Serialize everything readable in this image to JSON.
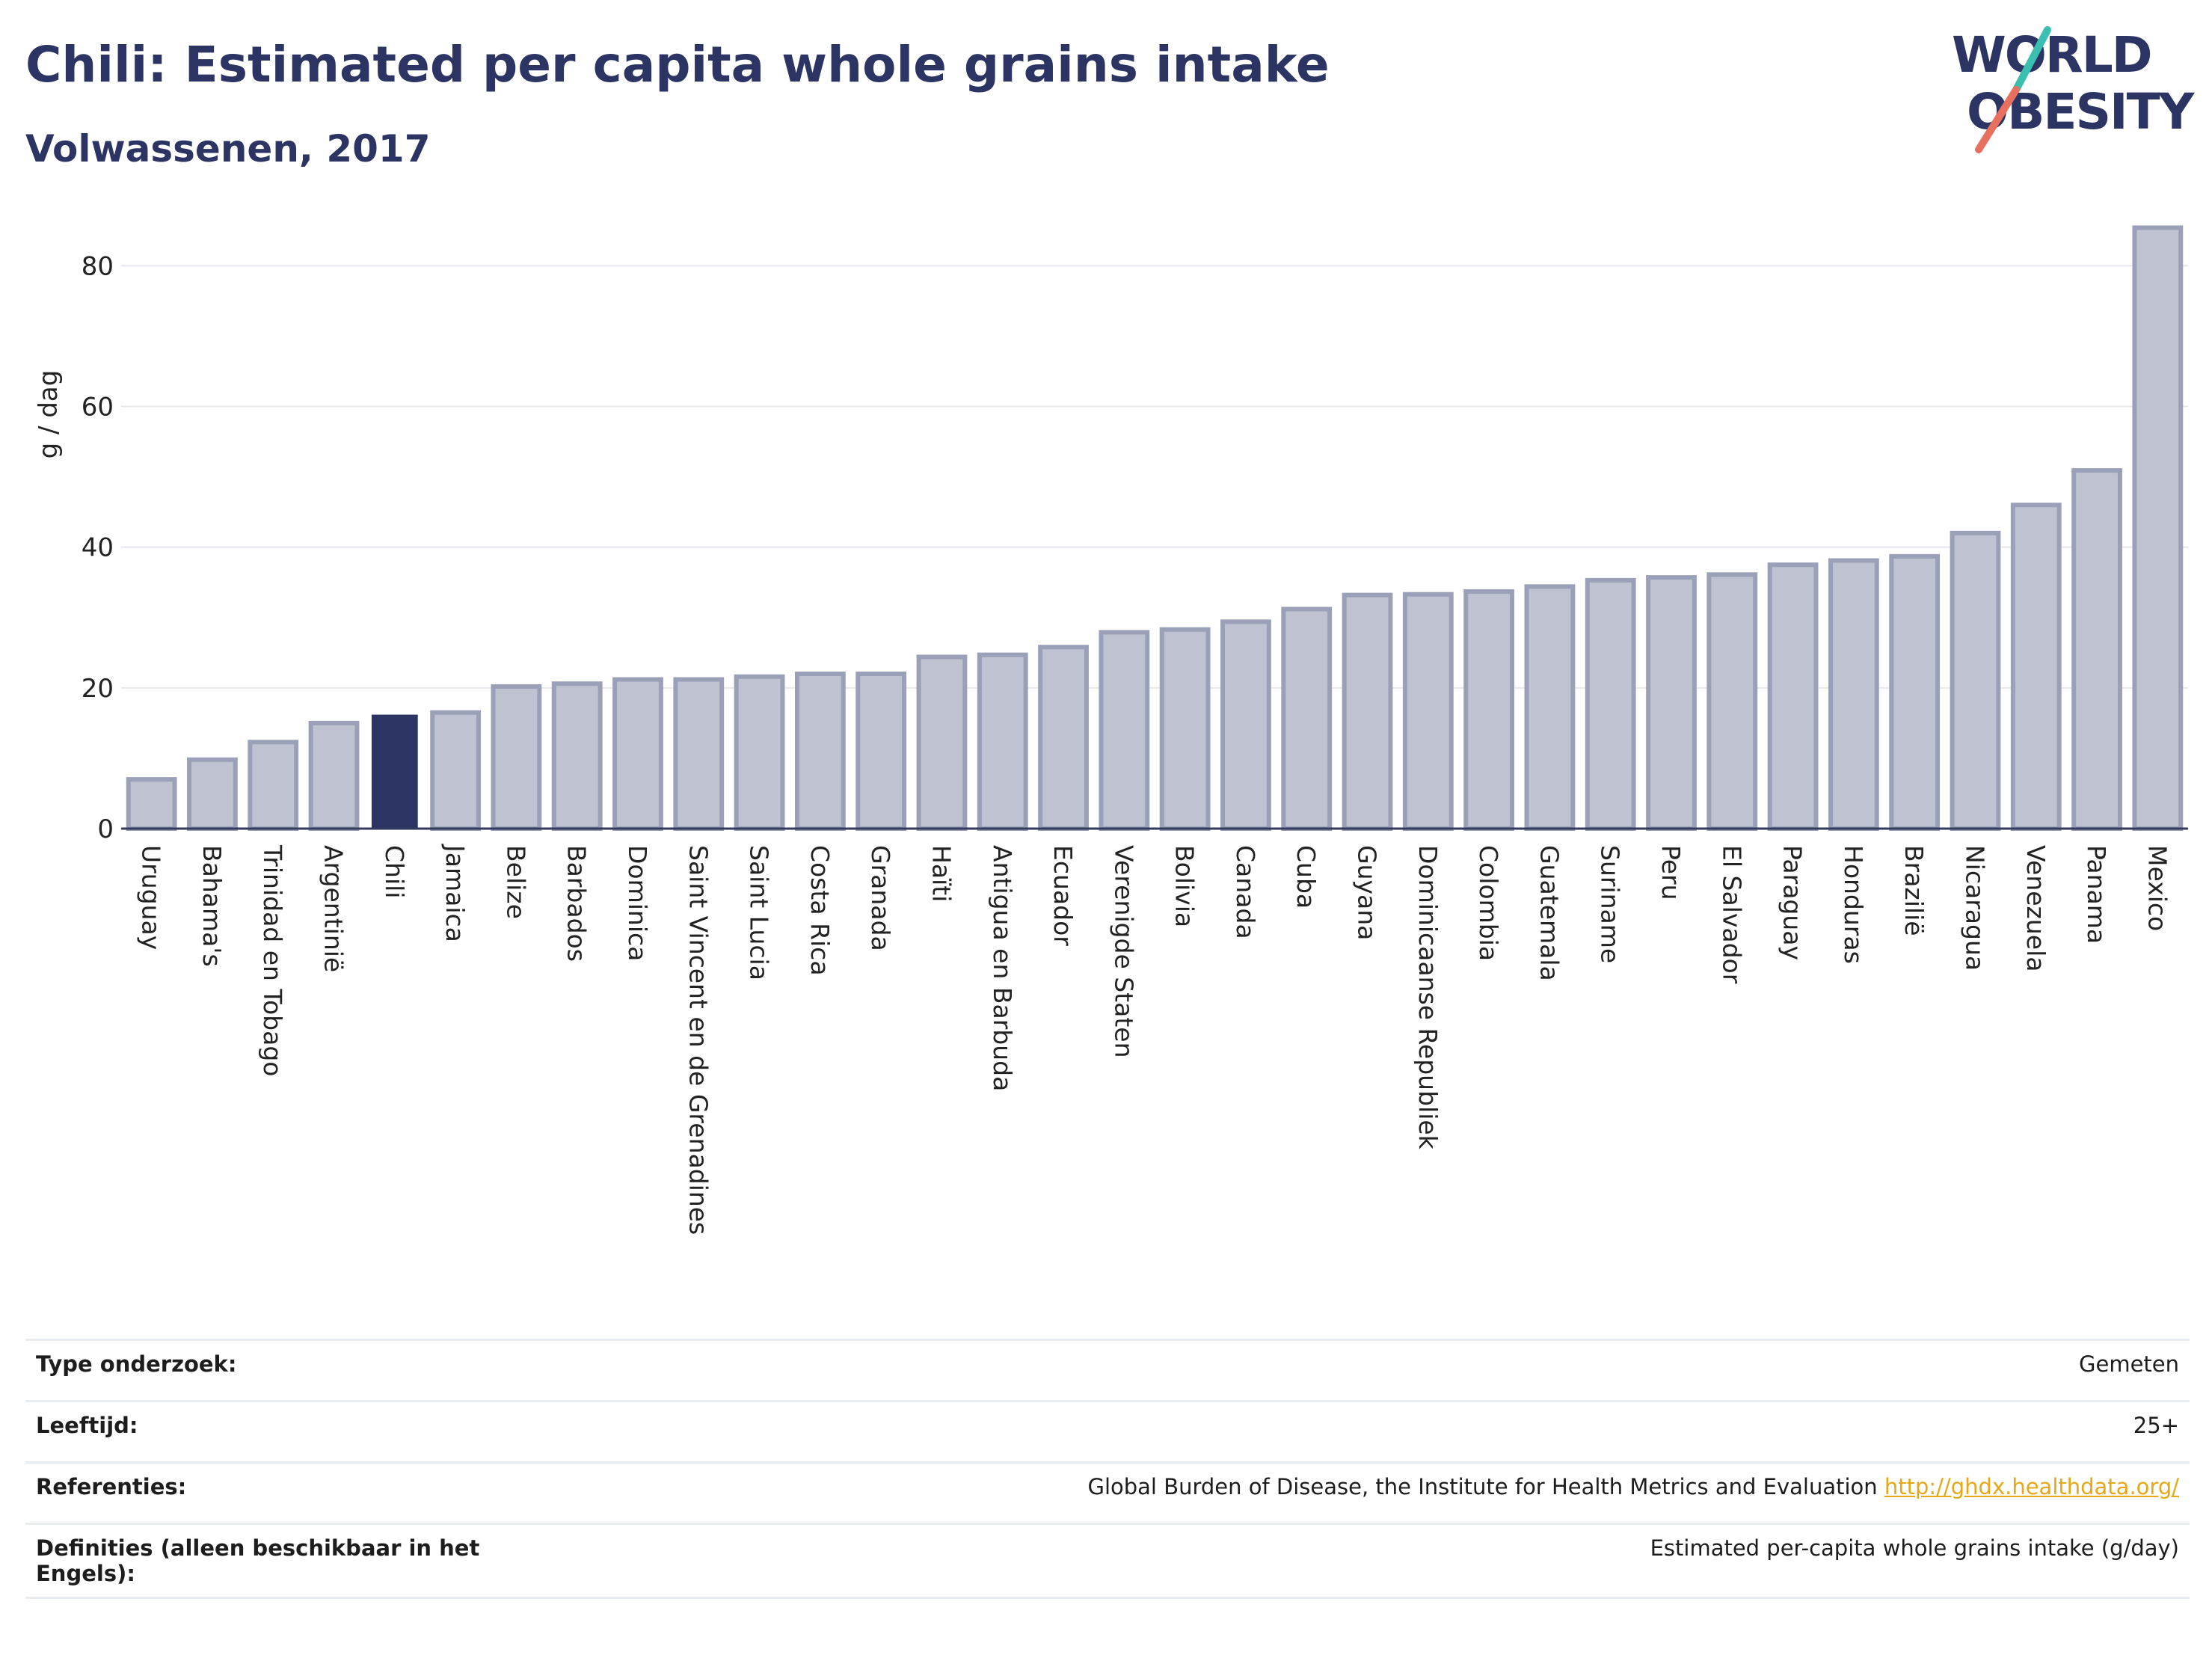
{
  "header": {
    "title": "Chili: Estimated per capita whole grains intake",
    "subtitle": "Volwassenen, 2017"
  },
  "logo": {
    "line1": "WORLD",
    "line2": "OBESITY"
  },
  "colors": {
    "bar": "#bfc3d1",
    "bar_border": "#9aa0b8",
    "highlight": "#2b3462",
    "title": "#2b3462"
  },
  "chart_data": {
    "type": "bar",
    "ylabel": "g / dag",
    "ylim": [
      0,
      88
    ],
    "yticks": [
      0,
      20,
      40,
      60,
      80
    ],
    "grid": true,
    "highlight": "Chili",
    "categories": [
      "Uruguay",
      "Bahama's",
      "Trinidad en Tobago",
      "Argentinië",
      "Chili",
      "Jamaica",
      "Belize",
      "Barbados",
      "Dominica",
      "Saint Vincent en de Grenadines",
      "Saint Lucia",
      "Costa Rica",
      "Granada",
      "Haïti",
      "Antigua en Barbuda",
      "Ecuador",
      "Verenigde Staten",
      "Bolivia",
      "Canada",
      "Cuba",
      "Guyana",
      "Dominicaanse Republiek",
      "Colombia",
      "Guatemala",
      "Suriname",
      "Peru",
      "El Salvador",
      "Paraguay",
      "Honduras",
      "Brazilië",
      "Nicaragua",
      "Venezuela",
      "Panama",
      "Mexico"
    ],
    "values": [
      7.0,
      9.8,
      12.3,
      15.0,
      16.2,
      16.5,
      20.2,
      20.6,
      21.2,
      21.2,
      21.6,
      22.0,
      22.0,
      24.4,
      24.7,
      25.8,
      27.9,
      28.3,
      29.4,
      31.2,
      33.2,
      33.3,
      33.7,
      34.4,
      35.3,
      35.7,
      36.1,
      37.5,
      38.1,
      38.7,
      42.0,
      46.0,
      50.9,
      85.4
    ]
  },
  "info": {
    "rows": [
      {
        "key": "Type onderzoek:",
        "value": "Gemeten"
      },
      {
        "key": "Leeftijd:",
        "value": "25+"
      },
      {
        "key": "Referenties:",
        "value": "Global Burden of Disease, the Institute for Health Metrics and Evaluation ",
        "link": "http://ghdx.healthdata.org/"
      },
      {
        "key": "Definities (alleen beschikbaar in het Engels):",
        "value": "Estimated per-capita whole grains intake (g/day)"
      }
    ]
  }
}
